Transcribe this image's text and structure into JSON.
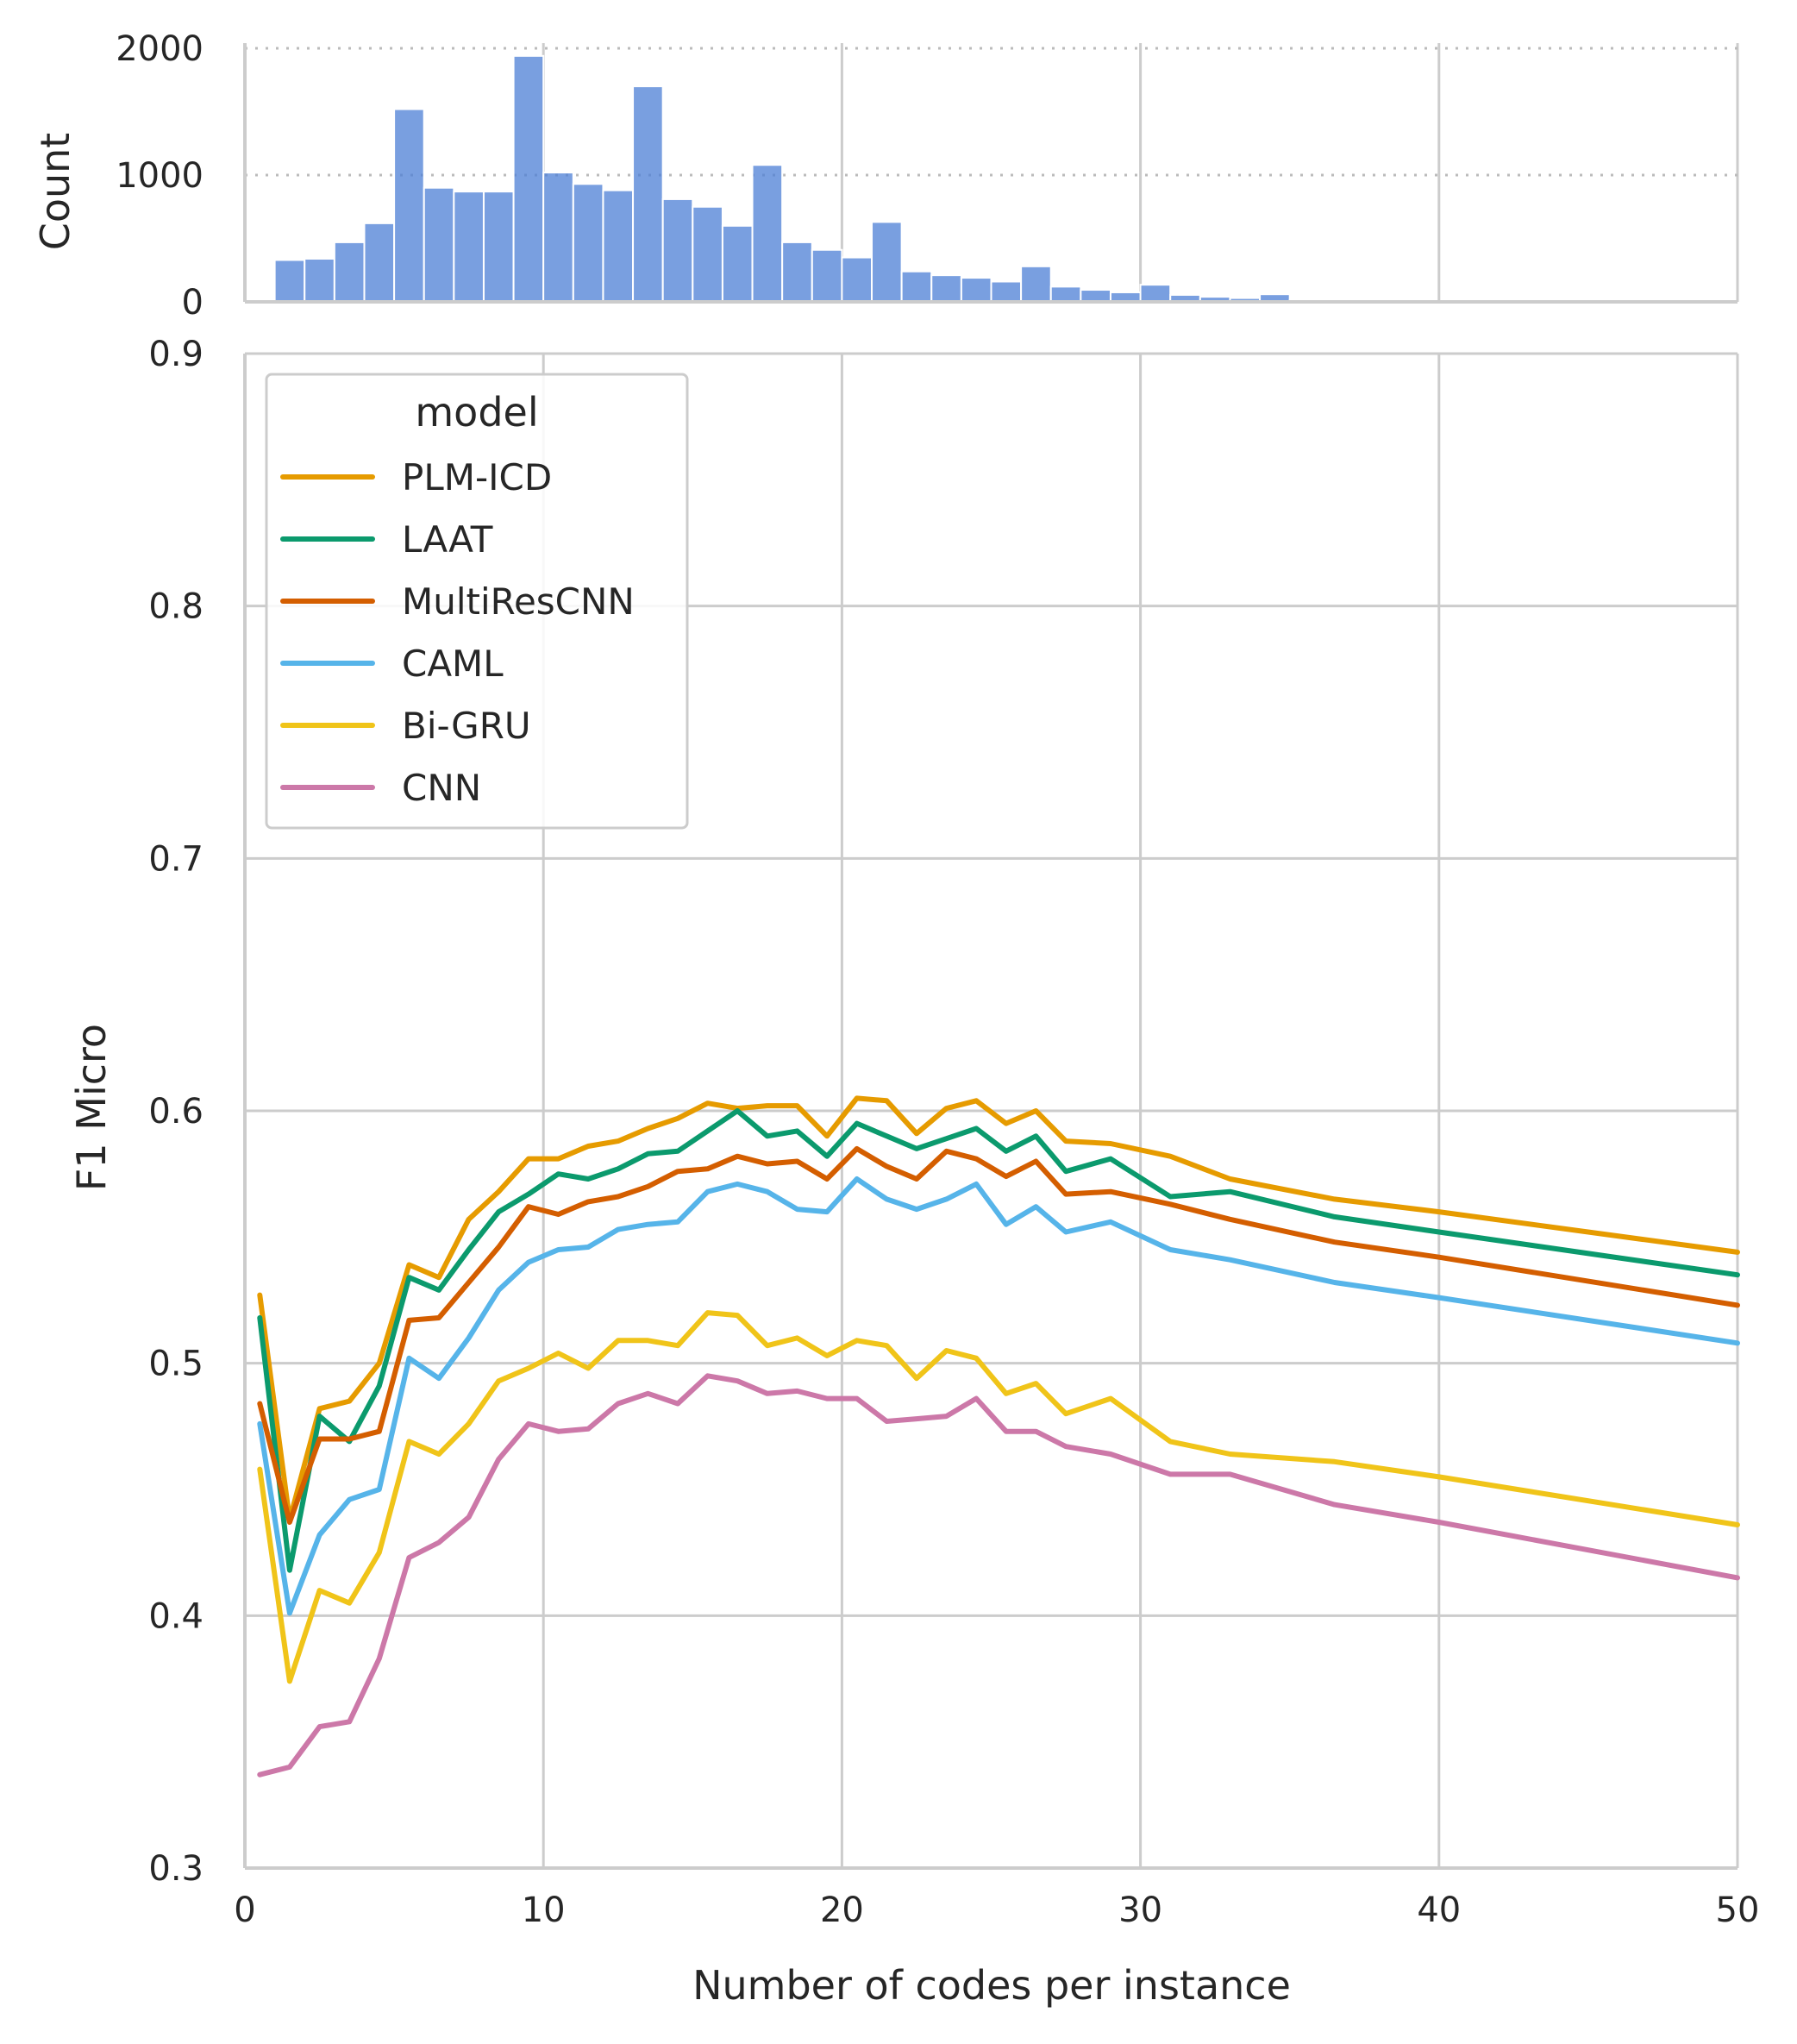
{
  "chart_data": [
    {
      "type": "bar",
      "title": "",
      "xlabel": "",
      "ylabel": "Count",
      "xlim": [
        0,
        50
      ],
      "ylim": [
        0,
        2000
      ],
      "yticks": [
        0,
        1000,
        2000
      ],
      "grid": "dotted horizontal, solid vertical",
      "bar_color": "#4c7fd6",
      "bin_width": 1,
      "bins": [
        {
          "x": 1.5,
          "count": 330
        },
        {
          "x": 2.5,
          "count": 340
        },
        {
          "x": 3.5,
          "count": 470
        },
        {
          "x": 4.5,
          "count": 620
        },
        {
          "x": 5.5,
          "count": 1520
        },
        {
          "x": 6.5,
          "count": 900
        },
        {
          "x": 7.5,
          "count": 870
        },
        {
          "x": 8.5,
          "count": 870
        },
        {
          "x": 9.5,
          "count": 1940
        },
        {
          "x": 10.5,
          "count": 1020
        },
        {
          "x": 11.5,
          "count": 930
        },
        {
          "x": 12.5,
          "count": 880
        },
        {
          "x": 13.5,
          "count": 1700
        },
        {
          "x": 14.5,
          "count": 810
        },
        {
          "x": 15.5,
          "count": 750
        },
        {
          "x": 16.5,
          "count": 600
        },
        {
          "x": 17.5,
          "count": 1080
        },
        {
          "x": 18.5,
          "count": 470
        },
        {
          "x": 19.5,
          "count": 410
        },
        {
          "x": 20.5,
          "count": 350
        },
        {
          "x": 21.5,
          "count": 630
        },
        {
          "x": 22.5,
          "count": 240
        },
        {
          "x": 23.5,
          "count": 210
        },
        {
          "x": 24.5,
          "count": 190
        },
        {
          "x": 25.5,
          "count": 160
        },
        {
          "x": 26.5,
          "count": 280
        },
        {
          "x": 27.5,
          "count": 120
        },
        {
          "x": 28.5,
          "count": 95
        },
        {
          "x": 29.5,
          "count": 75
        },
        {
          "x": 30.5,
          "count": 135
        },
        {
          "x": 31.5,
          "count": 55
        },
        {
          "x": 32.5,
          "count": 40
        },
        {
          "x": 33.5,
          "count": 30
        },
        {
          "x": 34.5,
          "count": 60
        },
        {
          "x": 35.5,
          "count": 15
        },
        {
          "x": 36.5,
          "count": 8
        }
      ]
    },
    {
      "type": "line",
      "title": "",
      "xlabel": "Number of codes per instance",
      "ylabel": "F1 Micro",
      "xlim": [
        0,
        50
      ],
      "ylim": [
        0.3,
        0.9
      ],
      "xticks": [
        0,
        10,
        20,
        30,
        40,
        50
      ],
      "yticks": [
        "0.3",
        "0.4",
        "0.5",
        "0.6",
        "0.7",
        "0.8",
        "0.9"
      ],
      "grid": "on",
      "legend": {
        "title": "model",
        "placement": "upper-left"
      },
      "series": [
        {
          "name": "PLM-ICD",
          "color": "#e69b00",
          "points": [
            [
              0.5,
              0.527
            ],
            [
              1.5,
              0.438
            ],
            [
              2.5,
              0.482
            ],
            [
              3.5,
              0.485
            ],
            [
              4.5,
              0.5
            ],
            [
              5.5,
              0.539
            ],
            [
              6.5,
              0.534
            ],
            [
              7.5,
              0.557
            ],
            [
              8.5,
              0.568
            ],
            [
              9.5,
              0.581
            ],
            [
              10.5,
              0.581
            ],
            [
              11.5,
              0.586
            ],
            [
              12.5,
              0.588
            ],
            [
              13.5,
              0.593
            ],
            [
              14.5,
              0.597
            ],
            [
              15.5,
              0.603
            ],
            [
              16.5,
              0.601
            ],
            [
              17.5,
              0.602
            ],
            [
              18.5,
              0.602
            ],
            [
              19.5,
              0.59
            ],
            [
              20.5,
              0.605
            ],
            [
              21.5,
              0.604
            ],
            [
              22.5,
              0.591
            ],
            [
              23.5,
              0.601
            ],
            [
              24.5,
              0.604
            ],
            [
              25.5,
              0.595
            ],
            [
              26.5,
              0.6
            ],
            [
              27.5,
              0.588
            ],
            [
              29,
              0.587
            ],
            [
              31,
              0.582
            ],
            [
              33,
              0.573
            ],
            [
              36.5,
              0.565
            ],
            [
              40,
              0.56
            ],
            [
              50,
              0.544
            ]
          ]
        },
        {
          "name": "LAAT",
          "color": "#0b9a6d",
          "points": [
            [
              0.5,
              0.518
            ],
            [
              1.5,
              0.418
            ],
            [
              2.5,
              0.479
            ],
            [
              3.5,
              0.469
            ],
            [
              4.5,
              0.491
            ],
            [
              5.5,
              0.534
            ],
            [
              6.5,
              0.529
            ],
            [
              7.5,
              0.545
            ],
            [
              8.5,
              0.56
            ],
            [
              9.5,
              0.567
            ],
            [
              10.5,
              0.575
            ],
            [
              11.5,
              0.573
            ],
            [
              12.5,
              0.577
            ],
            [
              13.5,
              0.583
            ],
            [
              14.5,
              0.584
            ],
            [
              15.5,
              0.592
            ],
            [
              16.5,
              0.6
            ],
            [
              17.5,
              0.59
            ],
            [
              18.5,
              0.592
            ],
            [
              19.5,
              0.582
            ],
            [
              20.5,
              0.595
            ],
            [
              21.5,
              0.59
            ],
            [
              22.5,
              0.585
            ],
            [
              23.5,
              0.589
            ],
            [
              24.5,
              0.593
            ],
            [
              25.5,
              0.584
            ],
            [
              26.5,
              0.59
            ],
            [
              27.5,
              0.576
            ],
            [
              29,
              0.581
            ],
            [
              31,
              0.566
            ],
            [
              33,
              0.568
            ],
            [
              36.5,
              0.558
            ],
            [
              40,
              0.552
            ],
            [
              50,
              0.535
            ]
          ]
        },
        {
          "name": "MultiResCNN",
          "color": "#d45e00",
          "points": [
            [
              0.5,
              0.484
            ],
            [
              1.5,
              0.437
            ],
            [
              2.5,
              0.47
            ],
            [
              3.5,
              0.47
            ],
            [
              4.5,
              0.473
            ],
            [
              5.5,
              0.517
            ],
            [
              6.5,
              0.518
            ],
            [
              7.5,
              0.532
            ],
            [
              8.5,
              0.546
            ],
            [
              9.5,
              0.562
            ],
            [
              10.5,
              0.559
            ],
            [
              11.5,
              0.564
            ],
            [
              12.5,
              0.566
            ],
            [
              13.5,
              0.57
            ],
            [
              14.5,
              0.576
            ],
            [
              15.5,
              0.577
            ],
            [
              16.5,
              0.582
            ],
            [
              17.5,
              0.579
            ],
            [
              18.5,
              0.58
            ],
            [
              19.5,
              0.573
            ],
            [
              20.5,
              0.585
            ],
            [
              21.5,
              0.578
            ],
            [
              22.5,
              0.573
            ],
            [
              23.5,
              0.584
            ],
            [
              24.5,
              0.581
            ],
            [
              25.5,
              0.574
            ],
            [
              26.5,
              0.58
            ],
            [
              27.5,
              0.567
            ],
            [
              29,
              0.568
            ],
            [
              31,
              0.563
            ],
            [
              33,
              0.557
            ],
            [
              36.5,
              0.548
            ],
            [
              40,
              0.542
            ],
            [
              50,
              0.523
            ]
          ]
        },
        {
          "name": "CAML",
          "color": "#56b4e9",
          "points": [
            [
              0.5,
              0.476
            ],
            [
              1.5,
              0.401
            ],
            [
              2.5,
              0.432
            ],
            [
              3.5,
              0.446
            ],
            [
              4.5,
              0.45
            ],
            [
              5.5,
              0.502
            ],
            [
              6.5,
              0.494
            ],
            [
              7.5,
              0.51
            ],
            [
              8.5,
              0.529
            ],
            [
              9.5,
              0.54
            ],
            [
              10.5,
              0.545
            ],
            [
              11.5,
              0.546
            ],
            [
              12.5,
              0.553
            ],
            [
              13.5,
              0.555
            ],
            [
              14.5,
              0.556
            ],
            [
              15.5,
              0.568
            ],
            [
              16.5,
              0.571
            ],
            [
              17.5,
              0.568
            ],
            [
              18.5,
              0.561
            ],
            [
              19.5,
              0.56
            ],
            [
              20.5,
              0.573
            ],
            [
              21.5,
              0.565
            ],
            [
              22.5,
              0.561
            ],
            [
              23.5,
              0.565
            ],
            [
              24.5,
              0.571
            ],
            [
              25.5,
              0.555
            ],
            [
              26.5,
              0.562
            ],
            [
              27.5,
              0.552
            ],
            [
              29,
              0.556
            ],
            [
              31,
              0.545
            ],
            [
              33,
              0.541
            ],
            [
              36.5,
              0.532
            ],
            [
              40,
              0.526
            ],
            [
              50,
              0.508
            ]
          ]
        },
        {
          "name": "Bi-GRU",
          "color": "#f0c419",
          "points": [
            [
              0.5,
              0.458
            ],
            [
              1.5,
              0.374
            ],
            [
              2.5,
              0.41
            ],
            [
              3.5,
              0.405
            ],
            [
              4.5,
              0.425
            ],
            [
              5.5,
              0.469
            ],
            [
              6.5,
              0.464
            ],
            [
              7.5,
              0.476
            ],
            [
              8.5,
              0.493
            ],
            [
              9.5,
              0.498
            ],
            [
              10.5,
              0.504
            ],
            [
              11.5,
              0.498
            ],
            [
              12.5,
              0.509
            ],
            [
              13.5,
              0.509
            ],
            [
              14.5,
              0.507
            ],
            [
              15.5,
              0.52
            ],
            [
              16.5,
              0.519
            ],
            [
              17.5,
              0.507
            ],
            [
              18.5,
              0.51
            ],
            [
              19.5,
              0.503
            ],
            [
              20.5,
              0.509
            ],
            [
              21.5,
              0.507
            ],
            [
              22.5,
              0.494
            ],
            [
              23.5,
              0.505
            ],
            [
              24.5,
              0.502
            ],
            [
              25.5,
              0.488
            ],
            [
              26.5,
              0.492
            ],
            [
              27.5,
              0.48
            ],
            [
              29,
              0.486
            ],
            [
              31,
              0.469
            ],
            [
              33,
              0.464
            ],
            [
              36.5,
              0.461
            ],
            [
              40,
              0.455
            ],
            [
              50,
              0.436
            ]
          ]
        },
        {
          "name": "CNN",
          "color": "#cc78a8",
          "points": [
            [
              0.5,
              0.337
            ],
            [
              1.5,
              0.34
            ],
            [
              2.5,
              0.356
            ],
            [
              3.5,
              0.358
            ],
            [
              4.5,
              0.383
            ],
            [
              5.5,
              0.423
            ],
            [
              6.5,
              0.429
            ],
            [
              7.5,
              0.439
            ],
            [
              8.5,
              0.462
            ],
            [
              9.5,
              0.476
            ],
            [
              10.5,
              0.473
            ],
            [
              11.5,
              0.474
            ],
            [
              12.5,
              0.484
            ],
            [
              13.5,
              0.488
            ],
            [
              14.5,
              0.484
            ],
            [
              15.5,
              0.495
            ],
            [
              16.5,
              0.493
            ],
            [
              17.5,
              0.488
            ],
            [
              18.5,
              0.489
            ],
            [
              19.5,
              0.486
            ],
            [
              20.5,
              0.486
            ],
            [
              21.5,
              0.477
            ],
            [
              22.5,
              0.478
            ],
            [
              23.5,
              0.479
            ],
            [
              24.5,
              0.486
            ],
            [
              25.5,
              0.473
            ],
            [
              26.5,
              0.473
            ],
            [
              27.5,
              0.467
            ],
            [
              29,
              0.464
            ],
            [
              31,
              0.456
            ],
            [
              33,
              0.456
            ],
            [
              36.5,
              0.444
            ],
            [
              40,
              0.437
            ],
            [
              50,
              0.415
            ]
          ]
        }
      ]
    }
  ]
}
